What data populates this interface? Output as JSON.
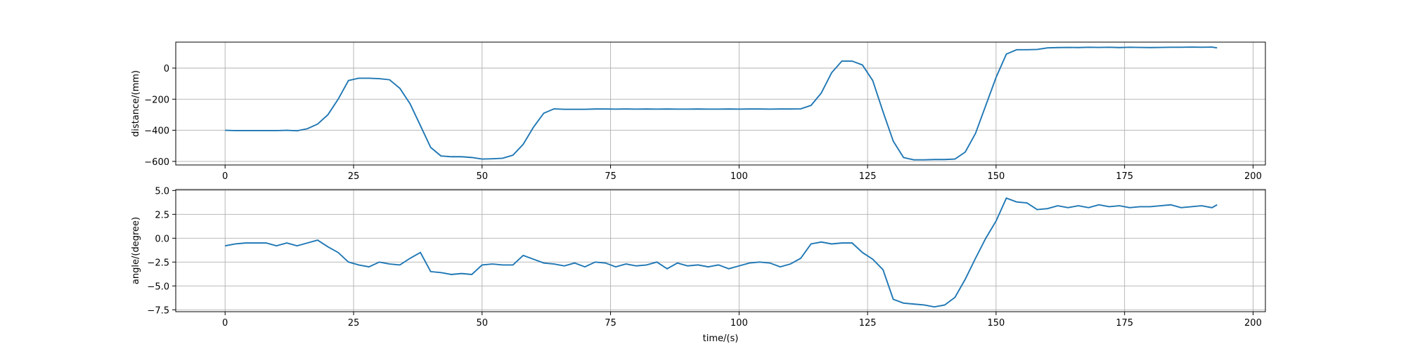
{
  "chart_data": [
    {
      "type": "line",
      "ylabel": "distance/(mm)",
      "color": "#1f77b4",
      "grid": true,
      "xlim": [
        -9.6,
        202.4
      ],
      "ylim": [
        -623,
        167
      ],
      "xticks": [
        0,
        25,
        50,
        75,
        100,
        125,
        150,
        175,
        200
      ],
      "yticks": [
        {
          "value": -600,
          "label": "−600"
        },
        {
          "value": -400,
          "label": "−400"
        },
        {
          "value": -200,
          "label": "−200"
        },
        0
      ],
      "x": [
        0,
        2,
        4,
        6,
        8,
        10,
        12,
        14,
        16,
        18,
        20,
        22,
        24,
        26,
        28,
        30,
        32,
        34,
        36,
        38,
        40,
        42,
        44,
        46,
        48,
        50,
        52,
        54,
        56,
        58,
        60,
        62,
        64,
        66,
        68,
        70,
        72,
        74,
        76,
        78,
        80,
        82,
        84,
        86,
        88,
        90,
        92,
        94,
        96,
        98,
        100,
        102,
        104,
        106,
        108,
        110,
        112,
        114,
        116,
        118,
        120,
        122,
        124,
        126,
        128,
        130,
        132,
        134,
        136,
        138,
        140,
        142,
        144,
        146,
        148,
        150,
        152,
        154,
        156,
        158,
        160,
        162,
        164,
        166,
        168,
        170,
        172,
        174,
        176,
        178,
        180,
        182,
        184,
        186,
        188,
        190,
        192,
        193
      ],
      "values": [
        -400,
        -402,
        -402,
        -402,
        -402,
        -402,
        -400,
        -403,
        -390,
        -360,
        -300,
        -200,
        -80,
        -65,
        -65,
        -68,
        -75,
        -130,
        -230,
        -370,
        -510,
        -565,
        -570,
        -570,
        -575,
        -585,
        -583,
        -580,
        -560,
        -490,
        -380,
        -290,
        -262,
        -265,
        -265,
        -265,
        -263,
        -263,
        -264,
        -263,
        -264,
        -263,
        -264,
        -263,
        -264,
        -264,
        -263,
        -264,
        -264,
        -263,
        -264,
        -263,
        -263,
        -264,
        -263,
        -263,
        -262,
        -240,
        -160,
        -30,
        45,
        45,
        20,
        -80,
        -280,
        -470,
        -575,
        -590,
        -590,
        -588,
        -588,
        -585,
        -540,
        -420,
        -240,
        -60,
        90,
        118,
        118,
        120,
        130,
        132,
        133,
        132,
        134,
        133,
        134,
        132,
        134,
        133,
        132,
        133,
        134,
        134,
        135,
        134,
        135,
        130
      ]
    },
    {
      "type": "line",
      "ylabel": "angle/(degree)",
      "xlabel": "time/(s)",
      "color": "#1f77b4",
      "grid": true,
      "xlim": [
        -9.6,
        202.4
      ],
      "ylim": [
        -7.7,
        5.1
      ],
      "xticks": [
        0,
        25,
        50,
        75,
        100,
        125,
        150,
        175,
        200
      ],
      "yticks": [
        {
          "value": -7.5,
          "label": "−7.5"
        },
        {
          "value": -5,
          "label": "−5.0"
        },
        {
          "value": -2.5,
          "label": "−2.5"
        },
        {
          "value": 0,
          "label": "0.0"
        },
        2.5,
        {
          "value": 5,
          "label": "5.0"
        }
      ],
      "x": [
        0,
        2,
        4,
        6,
        8,
        10,
        12,
        14,
        16,
        18,
        20,
        22,
        24,
        26,
        28,
        30,
        32,
        34,
        36,
        38,
        40,
        42,
        44,
        46,
        48,
        50,
        52,
        54,
        56,
        58,
        60,
        62,
        64,
        66,
        68,
        70,
        72,
        74,
        76,
        78,
        80,
        82,
        84,
        86,
        88,
        90,
        92,
        94,
        96,
        98,
        100,
        102,
        104,
        106,
        108,
        110,
        112,
        114,
        116,
        118,
        120,
        122,
        124,
        126,
        128,
        130,
        132,
        134,
        136,
        138,
        140,
        142,
        144,
        146,
        148,
        150,
        152,
        154,
        156,
        158,
        160,
        162,
        164,
        166,
        168,
        170,
        172,
        174,
        176,
        178,
        180,
        182,
        184,
        186,
        188,
        190,
        192,
        193
      ],
      "values": [
        -0.8,
        -0.6,
        -0.5,
        -0.5,
        -0.5,
        -0.8,
        -0.5,
        -0.8,
        -0.5,
        -0.2,
        -0.9,
        -1.5,
        -2.5,
        -2.8,
        -3.0,
        -2.5,
        -2.7,
        -2.8,
        -2.1,
        -1.5,
        -3.5,
        -3.6,
        -3.8,
        -3.7,
        -3.8,
        -2.8,
        -2.7,
        -2.8,
        -2.8,
        -1.8,
        -2.2,
        -2.6,
        -2.7,
        -2.9,
        -2.6,
        -3.0,
        -2.5,
        -2.6,
        -3.0,
        -2.7,
        -2.9,
        -2.8,
        -2.5,
        -3.2,
        -2.6,
        -2.9,
        -2.8,
        -3.0,
        -2.8,
        -3.2,
        -2.9,
        -2.6,
        -2.5,
        -2.6,
        -3.0,
        -2.7,
        -2.1,
        -0.6,
        -0.4,
        -0.6,
        -0.5,
        -0.5,
        -1.5,
        -2.2,
        -3.3,
        -6.4,
        -6.8,
        -6.9,
        -7.0,
        -7.2,
        -7.0,
        -6.2,
        -4.3,
        -2.1,
        0.0,
        1.8,
        4.2,
        3.8,
        3.7,
        3.0,
        3.1,
        3.4,
        3.2,
        3.4,
        3.2,
        3.5,
        3.3,
        3.4,
        3.2,
        3.3,
        3.3,
        3.4,
        3.5,
        3.2,
        3.3,
        3.4,
        3.2,
        3.5
      ]
    }
  ]
}
